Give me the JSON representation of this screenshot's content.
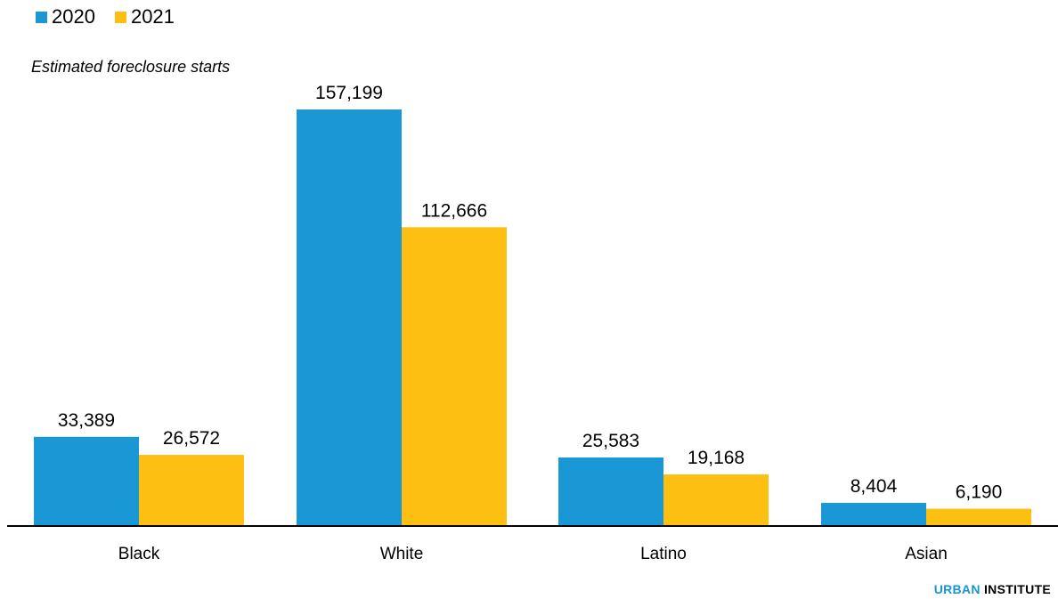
{
  "colors": {
    "2020": "#1a98d5",
    "2021": "#fdbf11"
  },
  "chart_data": {
    "type": "bar",
    "title": "",
    "ylabel": "Estimated foreclosure starts",
    "xlabel": "",
    "categories": [
      "Black",
      "White",
      "Latino",
      "Asian"
    ],
    "series": [
      {
        "name": "2020",
        "values": [
          33389,
          157199,
          25583,
          8404
        ],
        "labels": [
          "33,389",
          "157,199",
          "25,583",
          "8,404"
        ]
      },
      {
        "name": "2021",
        "values": [
          26572,
          112666,
          19168,
          6190
        ],
        "labels": [
          "26,572",
          "112,666",
          "19,168",
          "6,190"
        ]
      }
    ],
    "ylim": [
      0,
      157199
    ],
    "grid": false,
    "legend": "top-left"
  },
  "brand": {
    "part1": "URBAN",
    "part2": "INSTITUTE"
  }
}
